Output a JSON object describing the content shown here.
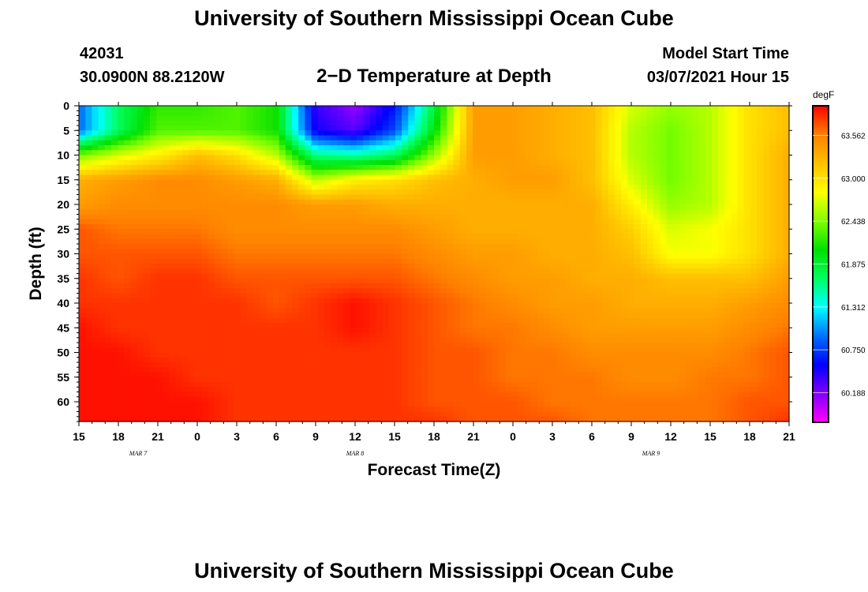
{
  "header": {
    "title": "University of Southern Mississippi Ocean Cube",
    "station": "42031",
    "coordinates": "30.0900N 88.2120W",
    "subtitle": "2−D Temperature at Depth",
    "model_start_label": "Model Start Time",
    "model_start_value": "03/07/2021 Hour 15"
  },
  "footer": {
    "title": "University of Southern Mississippi Ocean Cube"
  },
  "chart_data": {
    "type": "heatmap",
    "title": "2−D Temperature at Depth",
    "xlabel": "Forecast Time(Z)",
    "ylabel": "Depth (ft)",
    "units": "degF",
    "x_tick_labels": [
      "15",
      "18",
      "21",
      "0",
      "3",
      "6",
      "9",
      "12",
      "15",
      "18",
      "21",
      "0",
      "3",
      "6",
      "9",
      "12",
      "15",
      "18",
      "21"
    ],
    "x_hours_from_start": [
      0,
      3,
      6,
      9,
      12,
      15,
      18,
      21,
      24,
      27,
      30,
      33,
      36,
      39,
      42,
      45,
      48,
      51,
      54
    ],
    "date_labels": [
      {
        "text": "MAR 7",
        "hour_from_start": 4.5
      },
      {
        "text": "MAR 8",
        "hour_from_start": 21
      },
      {
        "text": "MAR 9",
        "hour_from_start": 43.5
      }
    ],
    "y_ticks": [
      0,
      5,
      10,
      15,
      20,
      25,
      30,
      35,
      40,
      45,
      50,
      55,
      60
    ],
    "ylim": [
      0,
      64
    ],
    "colorbar_ticks": [
      63.562,
      63.0,
      62.438,
      61.875,
      61.312,
      60.75,
      60.188
    ],
    "colorbar_range": [
      59.8,
      63.95
    ],
    "colorbar_colors": [
      "#ff00ff",
      "#8000ff",
      "#0000ff",
      "#0070ff",
      "#00ffff",
      "#00ff60",
      "#00e000",
      "#80ff00",
      "#ffff00",
      "#ffc000",
      "#ff8000",
      "#ff0000"
    ],
    "grid": {
      "x_hours": [
        0,
        3,
        6,
        9,
        12,
        15,
        18,
        21,
        24,
        27,
        30,
        33,
        36,
        39,
        42,
        45,
        48,
        51,
        54
      ],
      "depths": [
        0,
        5,
        10,
        15,
        20,
        25,
        30,
        35,
        40,
        45,
        50,
        55,
        60,
        64
      ],
      "temperature_degF": [
        [
          60.9,
          61.7,
          62.2,
          62.2,
          62.3,
          62.1,
          60.4,
          60.1,
          60.6,
          61.8,
          63.4,
          63.4,
          63.3,
          63.2,
          62.7,
          62.5,
          62.6,
          63.0,
          63.2
        ],
        [
          60.9,
          61.7,
          62.3,
          62.3,
          62.3,
          62.1,
          60.5,
          60.3,
          60.8,
          62.0,
          63.4,
          63.4,
          63.3,
          63.2,
          62.6,
          62.4,
          62.6,
          63.0,
          63.2
        ],
        [
          62.4,
          62.7,
          62.9,
          63.2,
          63.0,
          62.6,
          61.6,
          61.5,
          61.7,
          62.5,
          63.4,
          63.4,
          63.3,
          63.2,
          62.6,
          62.4,
          62.6,
          63.0,
          63.3
        ],
        [
          63.3,
          63.4,
          63.5,
          63.5,
          63.4,
          63.3,
          62.6,
          62.9,
          63.0,
          63.2,
          63.3,
          63.4,
          63.4,
          63.2,
          62.7,
          62.4,
          62.6,
          63.0,
          63.3
        ],
        [
          63.4,
          63.5,
          63.5,
          63.5,
          63.5,
          63.5,
          63.4,
          63.4,
          63.3,
          63.3,
          63.3,
          63.3,
          63.3,
          63.3,
          62.9,
          62.5,
          62.6,
          63.0,
          63.3
        ],
        [
          63.7,
          63.6,
          63.6,
          63.6,
          63.5,
          63.5,
          63.5,
          63.5,
          63.5,
          63.4,
          63.3,
          63.3,
          63.3,
          63.3,
          63.1,
          62.7,
          62.8,
          63.0,
          63.3
        ],
        [
          63.7,
          63.7,
          63.7,
          63.7,
          63.6,
          63.6,
          63.6,
          63.6,
          63.6,
          63.5,
          63.4,
          63.4,
          63.3,
          63.3,
          63.2,
          62.8,
          62.8,
          63.0,
          63.3
        ],
        [
          63.8,
          63.7,
          63.8,
          63.8,
          63.7,
          63.7,
          63.7,
          63.7,
          63.7,
          63.6,
          63.5,
          63.4,
          63.4,
          63.3,
          63.3,
          63.2,
          63.2,
          63.2,
          63.4
        ],
        [
          63.8,
          63.8,
          63.8,
          63.8,
          63.8,
          63.7,
          63.8,
          63.9,
          63.8,
          63.7,
          63.6,
          63.5,
          63.4,
          63.4,
          63.3,
          63.3,
          63.3,
          63.4,
          63.5
        ],
        [
          63.9,
          63.8,
          63.8,
          63.8,
          63.8,
          63.8,
          63.8,
          63.9,
          63.8,
          63.7,
          63.6,
          63.6,
          63.5,
          63.4,
          63.4,
          63.4,
          63.4,
          63.5,
          63.6
        ],
        [
          63.9,
          63.9,
          63.8,
          63.8,
          63.8,
          63.8,
          63.8,
          63.8,
          63.8,
          63.7,
          63.7,
          63.6,
          63.6,
          63.5,
          63.5,
          63.5,
          63.5,
          63.6,
          63.7
        ],
        [
          63.9,
          63.9,
          63.9,
          63.8,
          63.8,
          63.8,
          63.8,
          63.8,
          63.8,
          63.7,
          63.7,
          63.6,
          63.6,
          63.6,
          63.5,
          63.5,
          63.6,
          63.6,
          63.7
        ],
        [
          63.9,
          63.9,
          63.9,
          63.9,
          63.8,
          63.8,
          63.8,
          63.8,
          63.8,
          63.7,
          63.7,
          63.7,
          63.6,
          63.6,
          63.6,
          63.6,
          63.6,
          63.7,
          63.7
        ],
        [
          63.9,
          63.9,
          63.9,
          63.9,
          63.8,
          63.8,
          63.8,
          63.8,
          63.8,
          63.8,
          63.7,
          63.7,
          63.7,
          63.6,
          63.6,
          63.6,
          63.6,
          63.7,
          63.8
        ]
      ]
    }
  }
}
